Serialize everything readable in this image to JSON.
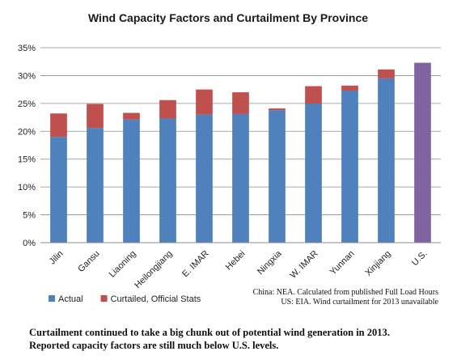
{
  "chart_data": {
    "type": "bar",
    "stacked": true,
    "title": "Wind Capacity Factors and Curtailment By Province",
    "categories": [
      "Jilin",
      "Gansu",
      "Liaoning",
      "Heilongjiang",
      "E. IMAR",
      "Hebei",
      "Ningxia",
      "W. IMAR",
      "Yunnan",
      "Xinjiang",
      "U.S."
    ],
    "series": [
      {
        "name": "Actual",
        "color": "#4f81bd",
        "values": [
          19.0,
          20.6,
          22.1,
          22.3,
          23.0,
          23.1,
          23.8,
          25.0,
          27.3,
          29.5,
          0
        ]
      },
      {
        "name": "Curtailed, Official Stats",
        "color": "#c0504d",
        "values": [
          4.2,
          4.3,
          1.2,
          3.3,
          4.5,
          3.9,
          0.3,
          3.1,
          0.9,
          1.6,
          0
        ]
      },
      {
        "name": "",
        "color": "#8064a2",
        "values": [
          0,
          0,
          0,
          0,
          0,
          0,
          0,
          0,
          0,
          0,
          32.3
        ]
      }
    ],
    "y_ticks": [
      "0%",
      "5%",
      "10%",
      "15%",
      "20%",
      "25%",
      "30%",
      "35%"
    ],
    "ylim": [
      0,
      35
    ],
    "grid": true,
    "legend_position": "bottom-left",
    "source_notes": [
      "China: NEA. Calculated from published Full Load Hours",
      "US: EIA. Wind curtailment  for 2013  unavailable"
    ]
  },
  "caption": [
    "Curtailment continued to take a big chunk out of potential wind generation in 2013.",
    "Reported capacity factors are still much below U.S. levels."
  ]
}
